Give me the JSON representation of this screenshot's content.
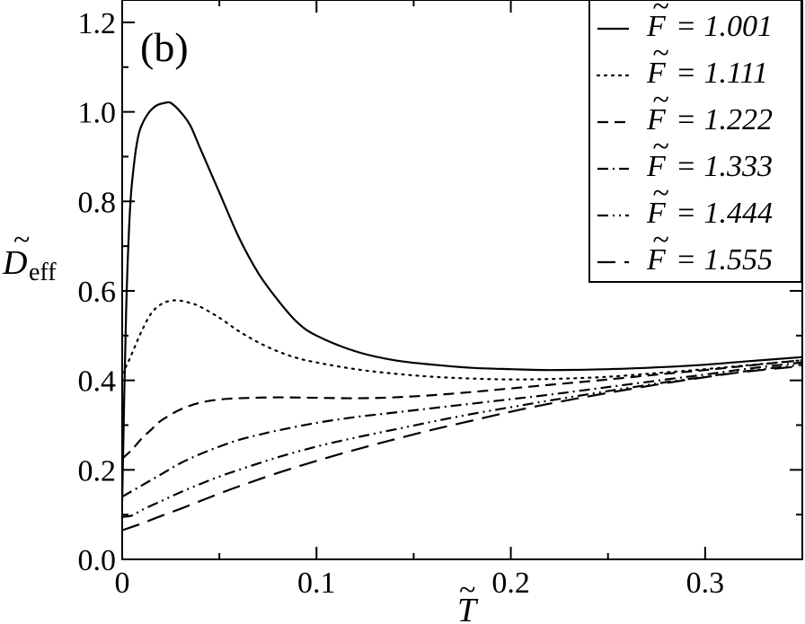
{
  "chart_data": {
    "type": "line",
    "panel_label": "(b)",
    "xlabel": {
      "symbol": "T",
      "accent": "~"
    },
    "ylabel": {
      "symbol": "D",
      "accent": "~",
      "subscript": "eff"
    },
    "xlim": [
      0,
      0.35
    ],
    "ylim": [
      0,
      1.25
    ],
    "x_ticks": [
      0,
      0.1,
      0.2,
      0.3
    ],
    "x_tick_labels": [
      "0",
      "0.1",
      "0.2",
      "0.3"
    ],
    "y_ticks": [
      0,
      0.2,
      0.4,
      0.6,
      0.8,
      1.0,
      1.2
    ],
    "y_tick_labels": [
      "0.0",
      "0.2",
      "0.4",
      "0.6",
      "0.8",
      "1.0",
      "1.2"
    ],
    "grid": false,
    "legend_position": "top-right",
    "series": [
      {
        "name": "F = 1.001",
        "legend_symbol": "F",
        "legend_value": "= 1.001",
        "style": "solid",
        "x": [
          0,
          0.002,
          0.004,
          0.006,
          0.008,
          0.01,
          0.014,
          0.018,
          0.022,
          0.025,
          0.03,
          0.035,
          0.04,
          0.05,
          0.06,
          0.07,
          0.08,
          0.09,
          0.1,
          0.12,
          0.14,
          0.16,
          0.18,
          0.2,
          0.22,
          0.25,
          0.28,
          0.3,
          0.32,
          0.35
        ],
        "y": [
          0.13,
          0.55,
          0.78,
          0.88,
          0.94,
          0.97,
          1.0,
          1.015,
          1.02,
          1.02,
          1.0,
          0.97,
          0.92,
          0.82,
          0.72,
          0.64,
          0.58,
          0.53,
          0.5,
          0.465,
          0.445,
          0.435,
          0.428,
          0.425,
          0.423,
          0.425,
          0.43,
          0.435,
          0.442,
          0.452
        ]
      },
      {
        "name": "F = 1.111",
        "legend_symbol": "F",
        "legend_value": "= 1.111",
        "style": "dotted",
        "x": [
          0,
          0.003,
          0.006,
          0.01,
          0.015,
          0.02,
          0.025,
          0.03,
          0.035,
          0.04,
          0.05,
          0.06,
          0.07,
          0.08,
          0.09,
          0.1,
          0.12,
          0.14,
          0.16,
          0.18,
          0.2,
          0.22,
          0.25,
          0.28,
          0.3,
          0.32,
          0.35
        ],
        "y": [
          0.415,
          0.44,
          0.47,
          0.51,
          0.55,
          0.57,
          0.578,
          0.578,
          0.573,
          0.565,
          0.54,
          0.51,
          0.485,
          0.465,
          0.45,
          0.44,
          0.425,
          0.415,
          0.408,
          0.404,
          0.402,
          0.403,
          0.408,
          0.418,
          0.425,
          0.433,
          0.445
        ]
      },
      {
        "name": "F = 1.222",
        "legend_symbol": "F",
        "legend_value": "= 1.222",
        "style": "dashed",
        "x": [
          0,
          0.005,
          0.01,
          0.015,
          0.02,
          0.03,
          0.04,
          0.05,
          0.06,
          0.08,
          0.1,
          0.12,
          0.14,
          0.16,
          0.18,
          0.2,
          0.22,
          0.25,
          0.28,
          0.3,
          0.32,
          0.35
        ],
        "y": [
          0.225,
          0.245,
          0.27,
          0.29,
          0.31,
          0.335,
          0.35,
          0.357,
          0.36,
          0.362,
          0.361,
          0.36,
          0.362,
          0.367,
          0.374,
          0.382,
          0.39,
          0.402,
          0.415,
          0.423,
          0.432,
          0.445
        ]
      },
      {
        "name": "F = 1.333",
        "legend_symbol": "F",
        "legend_value": "= 1.333",
        "style": "dash-dot",
        "x": [
          0,
          0.01,
          0.02,
          0.03,
          0.04,
          0.05,
          0.06,
          0.07,
          0.08,
          0.1,
          0.12,
          0.14,
          0.16,
          0.18,
          0.2,
          0.22,
          0.25,
          0.28,
          0.3,
          0.32,
          0.35
        ],
        "y": [
          0.14,
          0.165,
          0.19,
          0.215,
          0.235,
          0.252,
          0.267,
          0.278,
          0.288,
          0.305,
          0.318,
          0.328,
          0.338,
          0.348,
          0.358,
          0.368,
          0.385,
          0.402,
          0.413,
          0.425,
          0.44
        ]
      },
      {
        "name": "F = 1.444",
        "legend_symbol": "F",
        "legend_value": "= 1.444",
        "style": "dash-dot-dot",
        "x": [
          0,
          0.005,
          0.01,
          0.02,
          0.03,
          0.04,
          0.05,
          0.06,
          0.08,
          0.1,
          0.12,
          0.14,
          0.16,
          0.18,
          0.2,
          0.22,
          0.25,
          0.28,
          0.3,
          0.32,
          0.35
        ],
        "y": [
          0.095,
          0.098,
          0.11,
          0.13,
          0.15,
          0.168,
          0.185,
          0.2,
          0.228,
          0.252,
          0.272,
          0.29,
          0.308,
          0.325,
          0.34,
          0.355,
          0.376,
          0.396,
          0.408,
          0.42,
          0.435
        ]
      },
      {
        "name": "F = 1.555",
        "legend_symbol": "F",
        "legend_value": "= 1.555",
        "style": "long-dash",
        "x": [
          0,
          0.01,
          0.02,
          0.03,
          0.04,
          0.05,
          0.06,
          0.08,
          0.1,
          0.12,
          0.14,
          0.16,
          0.18,
          0.2,
          0.22,
          0.25,
          0.28,
          0.3,
          0.32,
          0.35
        ],
        "y": [
          0.065,
          0.08,
          0.097,
          0.113,
          0.13,
          0.147,
          0.163,
          0.193,
          0.22,
          0.245,
          0.268,
          0.29,
          0.31,
          0.33,
          0.348,
          0.372,
          0.394,
          0.407,
          0.419,
          0.432
        ]
      }
    ]
  }
}
